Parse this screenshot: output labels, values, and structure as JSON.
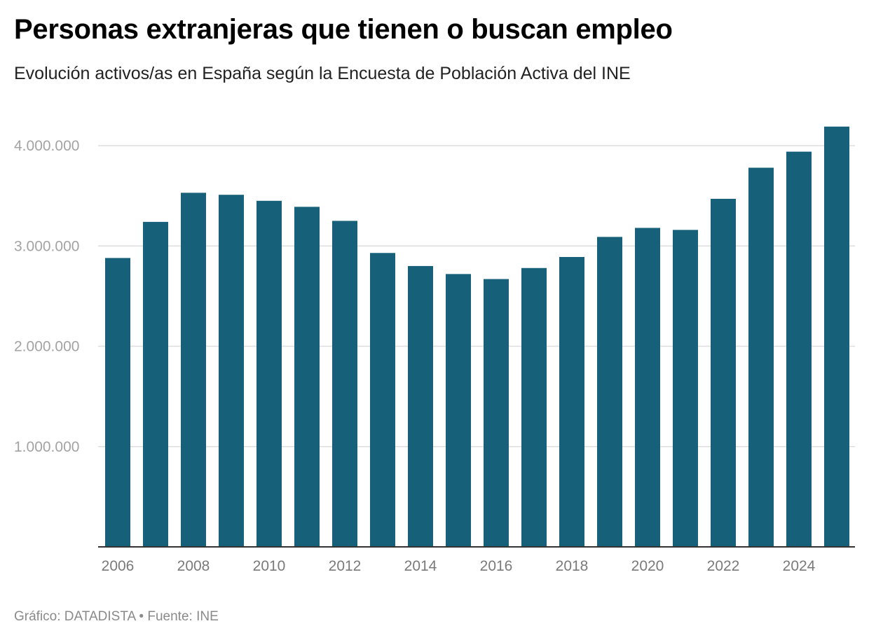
{
  "chart_data": {
    "type": "bar",
    "title": "Personas extranjeras que tienen o buscan empleo",
    "subtitle": "Evolución activos/as en España según la Encuesta de Población Activa del INE",
    "xlabel": "",
    "ylabel": "",
    "ylim": [
      0,
      4250000
    ],
    "yticks": [
      1000000,
      2000000,
      3000000,
      4000000
    ],
    "ytick_labels": [
      "1.000.000",
      "2.000.000",
      "3.000.000",
      "4.000.000"
    ],
    "grid": true,
    "categories": [
      "2006",
      "2007",
      "2008",
      "2009",
      "2010",
      "2011",
      "2012",
      "2013",
      "2014",
      "2015",
      "2016",
      "2017",
      "2018",
      "2019",
      "2020",
      "2021",
      "2022",
      "2023",
      "2024",
      "2025"
    ],
    "xtick_labels": [
      "2006",
      "",
      "2008",
      "",
      "2010",
      "",
      "2012",
      "",
      "2014",
      "",
      "2016",
      "",
      "2018",
      "",
      "2020",
      "",
      "2022",
      "",
      "2024",
      ""
    ],
    "values": [
      2880000,
      3240000,
      3530000,
      3510000,
      3450000,
      3390000,
      3250000,
      2930000,
      2800000,
      2720000,
      2670000,
      2780000,
      2890000,
      3090000,
      3180000,
      3160000,
      3470000,
      3780000,
      3940000,
      4190000
    ],
    "color": "#16607a"
  },
  "footer": {
    "text": "Gráfico: DATADISTA • Fuente: INE"
  }
}
